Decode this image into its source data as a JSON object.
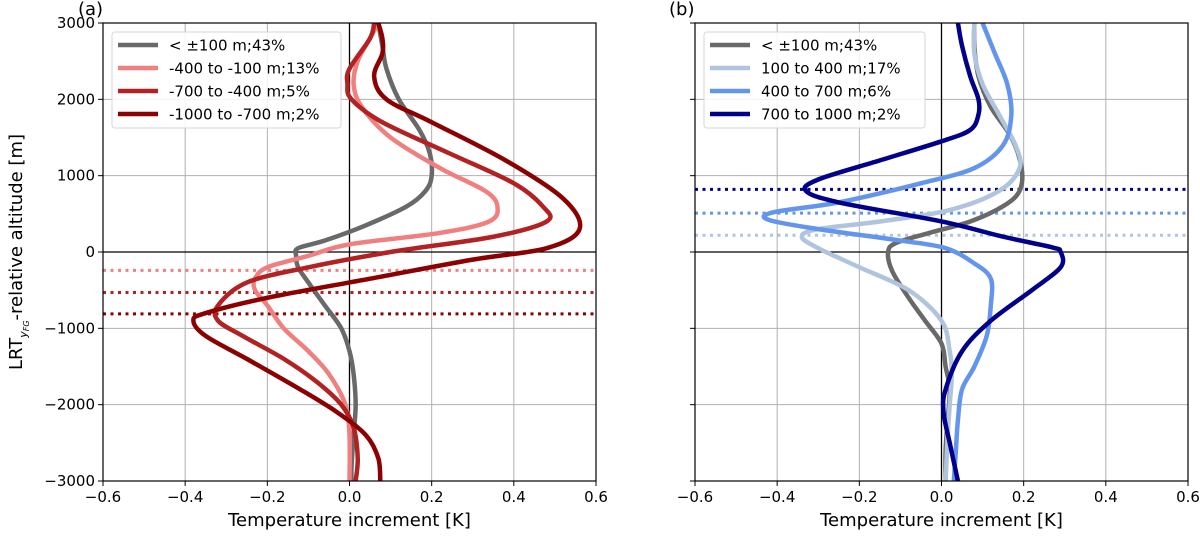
{
  "chart_data": [
    {
      "type": "line",
      "panel_label": "(a)",
      "xlabel": "Temperature increment [K]",
      "ylabel": "LRT",
      "ylabel_subscript": "y_FG",
      "ylabel_suffix": "-relative altitude [m]",
      "xlim": [
        -0.6,
        0.6
      ],
      "ylim": [
        -3000,
        3000
      ],
      "xticks": [
        -0.6,
        -0.4,
        -0.2,
        0.0,
        0.2,
        0.4,
        0.6
      ],
      "xtick_labels": [
        "−0.6",
        "−0.4",
        "−0.2",
        "0.0",
        "0.2",
        "0.4",
        "0.6"
      ],
      "yticks": [
        -3000,
        -2000,
        -1000,
        0,
        1000,
        2000,
        3000
      ],
      "ytick_labels": [
        "−3000",
        "−2000",
        "−1000",
        "0",
        "1000",
        "2000",
        "3000"
      ],
      "show_ytick_labels": true,
      "grid": true,
      "legend_position": "top-left",
      "reference_lines": [
        {
          "orientation": "vertical",
          "value": 0
        },
        {
          "orientation": "horizontal",
          "value": 0
        }
      ],
      "dotted_levels": [
        {
          "y": -240,
          "color": "#f08080"
        },
        {
          "y": -530,
          "color": "#b22222"
        },
        {
          "y": -810,
          "color": "#8b0000"
        }
      ],
      "series": [
        {
          "name": "< ±100 m;43%",
          "color": "#696969",
          "points": [
            [
              0.07,
              3000
            ],
            [
              0.08,
              2700
            ],
            [
              0.09,
              2400
            ],
            [
              0.12,
              2000
            ],
            [
              0.17,
              1600
            ],
            [
              0.195,
              1300
            ],
            [
              0.2,
              1000
            ],
            [
              0.185,
              800
            ],
            [
              0.14,
              600
            ],
            [
              0.04,
              350
            ],
            [
              -0.06,
              150
            ],
            [
              -0.125,
              50
            ],
            [
              -0.13,
              -50
            ],
            [
              -0.125,
              -200
            ],
            [
              -0.1,
              -400
            ],
            [
              -0.06,
              -700
            ],
            [
              -0.02,
              -1000
            ],
            [
              0.0,
              -1300
            ],
            [
              0.01,
              -1600
            ],
            [
              0.015,
              -2000
            ],
            [
              0.01,
              -2400
            ],
            [
              0.005,
              -2800
            ],
            [
              0.005,
              -3000
            ]
          ]
        },
        {
          "name": "-400 to -100 m;13%",
          "color": "#f08080",
          "points": [
            [
              0.07,
              3000
            ],
            [
              0.05,
              2800
            ],
            [
              0.02,
              2500
            ],
            [
              0.01,
              2200
            ],
            [
              0.03,
              1900
            ],
            [
              0.1,
              1500
            ],
            [
              0.22,
              1100
            ],
            [
              0.33,
              800
            ],
            [
              0.36,
              600
            ],
            [
              0.34,
              400
            ],
            [
              0.22,
              250
            ],
            [
              0.0,
              100
            ],
            [
              -0.1,
              -50
            ],
            [
              -0.2,
              -200
            ],
            [
              -0.23,
              -350
            ],
            [
              -0.23,
              -500
            ],
            [
              -0.2,
              -700
            ],
            [
              -0.16,
              -1000
            ],
            [
              -0.1,
              -1300
            ],
            [
              -0.05,
              -1600
            ],
            [
              -0.01,
              -2000
            ],
            [
              0.0,
              -2400
            ],
            [
              0.0,
              -3000
            ]
          ]
        },
        {
          "name": "-700 to -400 m;5%",
          "color": "#b22222",
          "points": [
            [
              0.06,
              3000
            ],
            [
              0.05,
              2800
            ],
            [
              0.0,
              2400
            ],
            [
              -0.005,
              2200
            ],
            [
              0.005,
              2000
            ],
            [
              0.08,
              1700
            ],
            [
              0.24,
              1300
            ],
            [
              0.4,
              900
            ],
            [
              0.47,
              600
            ],
            [
              0.48,
              400
            ],
            [
              0.35,
              200
            ],
            [
              0.1,
              0
            ],
            [
              -0.1,
              -200
            ],
            [
              -0.25,
              -400
            ],
            [
              -0.32,
              -700
            ],
            [
              -0.32,
              -900
            ],
            [
              -0.26,
              -1100
            ],
            [
              -0.16,
              -1400
            ],
            [
              -0.08,
              -1700
            ],
            [
              -0.02,
              -2000
            ],
            [
              0.01,
              -2300
            ],
            [
              0.02,
              -2700
            ],
            [
              0.015,
              -3000
            ]
          ]
        },
        {
          "name": "-1000 to -700 m;2%",
          "color": "#8b0000",
          "points": [
            [
              0.07,
              3000
            ],
            [
              0.08,
              2800
            ],
            [
              0.08,
              2600
            ],
            [
              0.06,
              2300
            ],
            [
              0.09,
              2000
            ],
            [
              0.2,
              1700
            ],
            [
              0.38,
              1200
            ],
            [
              0.52,
              700
            ],
            [
              0.56,
              300
            ],
            [
              0.48,
              50
            ],
            [
              0.3,
              -100
            ],
            [
              0.05,
              -350
            ],
            [
              -0.2,
              -600
            ],
            [
              -0.35,
              -800
            ],
            [
              -0.38,
              -900
            ],
            [
              -0.35,
              -1100
            ],
            [
              -0.25,
              -1400
            ],
            [
              -0.12,
              -1800
            ],
            [
              -0.03,
              -2100
            ],
            [
              0.04,
              -2400
            ],
            [
              0.07,
              -2700
            ],
            [
              0.075,
              -3000
            ]
          ]
        }
      ]
    },
    {
      "type": "line",
      "panel_label": "(b)",
      "xlabel": "Temperature increment [K]",
      "xlim": [
        -0.6,
        0.6
      ],
      "ylim": [
        -3000,
        3000
      ],
      "xticks": [
        -0.6,
        -0.4,
        -0.2,
        0.0,
        0.2,
        0.4,
        0.6
      ],
      "xtick_labels": [
        "−0.6",
        "−0.4",
        "−0.2",
        "0.0",
        "0.2",
        "0.4",
        "0.6"
      ],
      "yticks": [
        -3000,
        -2000,
        -1000,
        0,
        1000,
        2000,
        3000
      ],
      "show_ytick_labels": false,
      "grid": true,
      "legend_position": "top-left",
      "reference_lines": [
        {
          "orientation": "vertical",
          "value": 0
        },
        {
          "orientation": "horizontal",
          "value": 0
        }
      ],
      "dotted_levels": [
        {
          "y": 820,
          "color": "#00008b"
        },
        {
          "y": 510,
          "color": "#6495ed"
        },
        {
          "y": 220,
          "color": "#b0c4de"
        }
      ],
      "series": [
        {
          "name": "< ±100 m;43%",
          "color": "#696969",
          "points": [
            [
              0.08,
              3000
            ],
            [
              0.08,
              2700
            ],
            [
              0.09,
              2300
            ],
            [
              0.12,
              1900
            ],
            [
              0.17,
              1500
            ],
            [
              0.195,
              1100
            ],
            [
              0.19,
              800
            ],
            [
              0.15,
              600
            ],
            [
              0.07,
              400
            ],
            [
              -0.03,
              250
            ],
            [
              -0.11,
              120
            ],
            [
              -0.13,
              0
            ],
            [
              -0.12,
              -250
            ],
            [
              -0.08,
              -600
            ],
            [
              -0.04,
              -900
            ],
            [
              0.0,
              -1200
            ],
            [
              0.01,
              -1500
            ],
            [
              0.02,
              -1800
            ],
            [
              0.015,
              -2200
            ],
            [
              0.01,
              -2600
            ],
            [
              0.01,
              -3000
            ]
          ]
        },
        {
          "name": "100 to 400 m;17%",
          "color": "#b0c4de",
          "points": [
            [
              0.08,
              3000
            ],
            [
              0.08,
              2600
            ],
            [
              0.1,
              2200
            ],
            [
              0.14,
              1800
            ],
            [
              0.18,
              1400
            ],
            [
              0.19,
              1100
            ],
            [
              0.14,
              800
            ],
            [
              0.02,
              550
            ],
            [
              -0.15,
              400
            ],
            [
              -0.3,
              300
            ],
            [
              -0.34,
              200
            ],
            [
              -0.3,
              50
            ],
            [
              -0.2,
              -200
            ],
            [
              -0.08,
              -500
            ],
            [
              0.0,
              -900
            ],
            [
              0.02,
              -1300
            ],
            [
              0.025,
              -1600
            ],
            [
              0.02,
              -2000
            ],
            [
              0.015,
              -2400
            ],
            [
              0.01,
              -3000
            ]
          ]
        },
        {
          "name": "400 to 700 m;6%",
          "color": "#6495ed",
          "points": [
            [
              0.1,
              3000
            ],
            [
              0.13,
              2600
            ],
            [
              0.16,
              2200
            ],
            [
              0.17,
              1800
            ],
            [
              0.15,
              1400
            ],
            [
              0.08,
              1100
            ],
            [
              -0.05,
              900
            ],
            [
              -0.25,
              650
            ],
            [
              -0.41,
              520
            ],
            [
              -0.42,
              420
            ],
            [
              -0.3,
              300
            ],
            [
              -0.1,
              150
            ],
            [
              0.01,
              50
            ],
            [
              0.08,
              -150
            ],
            [
              0.12,
              -350
            ],
            [
              0.12,
              -700
            ],
            [
              0.11,
              -1100
            ],
            [
              0.08,
              -1500
            ],
            [
              0.05,
              -1800
            ],
            [
              0.04,
              -2200
            ],
            [
              0.035,
              -2600
            ],
            [
              0.03,
              -3000
            ]
          ]
        },
        {
          "name": "700 to 1000 m;2%",
          "color": "#00008b",
          "points": [
            [
              0.04,
              3000
            ],
            [
              0.05,
              2700
            ],
            [
              0.07,
              2300
            ],
            [
              0.09,
              2000
            ],
            [
              0.09,
              1800
            ],
            [
              0.07,
              1600
            ],
            [
              0.0,
              1450
            ],
            [
              -0.15,
              1200
            ],
            [
              -0.3,
              950
            ],
            [
              -0.33,
              800
            ],
            [
              -0.25,
              650
            ],
            [
              0.0,
              400
            ],
            [
              0.15,
              200
            ],
            [
              0.27,
              60
            ],
            [
              0.29,
              0
            ],
            [
              0.29,
              -200
            ],
            [
              0.22,
              -500
            ],
            [
              0.12,
              -900
            ],
            [
              0.05,
              -1300
            ],
            [
              0.01,
              -1800
            ],
            [
              0.005,
              -2100
            ],
            [
              0.02,
              -2500
            ],
            [
              0.04,
              -3000
            ]
          ]
        }
      ]
    }
  ]
}
